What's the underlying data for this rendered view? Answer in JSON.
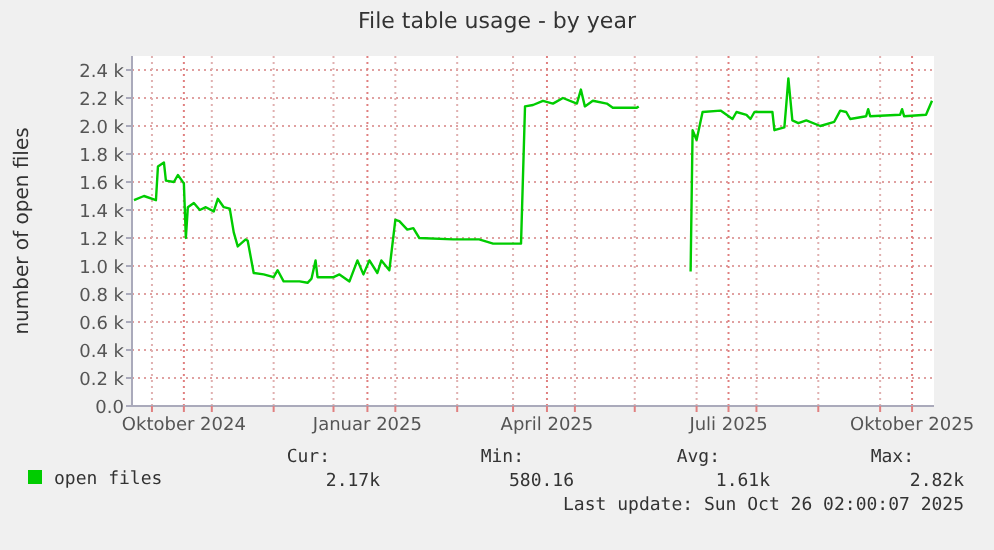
{
  "chart_data": {
    "type": "line",
    "title": "File table usage - by year",
    "ylabel": "number of open files",
    "x": [
      "2024-09-06",
      "2024-09-11",
      "2024-09-17",
      "2024-09-18",
      "2024-09-21",
      "2024-09-22",
      "2024-09-26",
      "2024-09-28",
      "2024-10-01",
      "2024-10-02",
      "2024-10-03",
      "2024-10-06",
      "2024-10-09",
      "2024-10-12",
      "2024-10-16",
      "2024-10-18",
      "2024-10-21",
      "2024-10-24",
      "2024-10-26",
      "2024-10-28",
      "2024-11-01",
      "2024-11-02",
      "2024-11-05",
      "2024-11-10",
      "2024-11-15",
      "2024-11-17",
      "2024-11-20",
      "2024-11-28",
      "2024-12-02",
      "2024-12-04",
      "2024-12-06",
      "2024-12-07",
      "2024-12-15",
      "2024-12-18",
      "2024-12-23",
      "2024-12-27",
      "2024-12-30",
      "2025-01-02",
      "2025-01-06",
      "2025-01-08",
      "2025-01-12",
      "2025-01-15",
      "2025-01-17",
      "2025-01-21",
      "2025-01-24",
      "2025-01-27",
      "2025-02-13",
      "2025-02-26",
      "2025-03-05",
      "2025-03-19",
      "2025-03-21",
      "2025-03-25",
      "2025-03-30",
      "2025-04-04",
      "2025-04-09",
      "2025-04-16",
      "2025-04-18",
      "2025-04-20",
      "2025-04-24",
      "2025-05-01",
      "2025-05-04",
      "2025-05-16",
      "2025-05-17",
      "2025-06-01",
      "2025-06-12",
      "2025-06-13",
      "2025-06-15",
      "2025-06-18",
      "2025-06-27",
      "2025-07-03",
      "2025-07-05",
      "2025-07-10",
      "2025-07-12",
      "2025-07-14",
      "2025-07-23",
      "2025-07-24",
      "2025-07-29",
      "2025-07-30",
      "2025-07-31",
      "2025-08-02",
      "2025-08-05",
      "2025-08-09",
      "2025-08-16",
      "2025-08-23",
      "2025-08-26",
      "2025-08-29",
      "2025-08-31",
      "2025-09-08",
      "2025-09-09",
      "2025-09-10",
      "2025-09-25",
      "2025-09-26",
      "2025-09-27",
      "2025-10-08",
      "2025-10-11"
    ],
    "series": [
      {
        "name": "open files",
        "color": "#00cc00",
        "values": [
          1470,
          1500,
          1470,
          1710,
          1740,
          1610,
          1600,
          1650,
          1590,
          1200,
          1420,
          1450,
          1400,
          1420,
          1390,
          1480,
          1420,
          1410,
          1240,
          1140,
          1190,
          1180,
          950,
          940,
          920,
          970,
          890,
          890,
          880,
          910,
          1040,
          920,
          920,
          940,
          890,
          1040,
          940,
          1040,
          950,
          1040,
          970,
          1330,
          1320,
          1260,
          1270,
          1200,
          1190,
          1190,
          1160,
          1160,
          2140,
          2150,
          2180,
          2160,
          2200,
          2160,
          2260,
          2140,
          2180,
          2160,
          2130,
          2130,
          2140,
          null,
          960,
          1970,
          1900,
          2100,
          2110,
          2050,
          2100,
          2080,
          2050,
          2100,
          2100,
          1970,
          1990,
          2160,
          2340,
          2040,
          2020,
          2040,
          2000,
          2030,
          2110,
          2100,
          2050,
          2070,
          2120,
          2070,
          2080,
          2120,
          2070,
          2080,
          2180
        ]
      }
    ],
    "xlim": [
      "2024-09-05",
      "2025-10-12"
    ],
    "xticks": [
      {
        "value": "2024-09-15",
        "label": null
      },
      {
        "value": "2024-10-01",
        "label": "Oktober 2024"
      },
      {
        "value": "2024-10-15",
        "label": null
      },
      {
        "value": "2024-11-15",
        "label": null
      },
      {
        "value": "2024-12-15",
        "label": null
      },
      {
        "value": "2025-01-01",
        "label": "Januar 2025"
      },
      {
        "value": "2025-01-15",
        "label": null
      },
      {
        "value": "2025-02-15",
        "label": null
      },
      {
        "value": "2025-03-15",
        "label": null
      },
      {
        "value": "2025-04-01",
        "label": "April 2025"
      },
      {
        "value": "2025-04-15",
        "label": null
      },
      {
        "value": "2025-05-15",
        "label": null
      },
      {
        "value": "2025-06-15",
        "label": null
      },
      {
        "value": "2025-07-01",
        "label": "Juli 2025"
      },
      {
        "value": "2025-07-15",
        "label": null
      },
      {
        "value": "2025-08-15",
        "label": null
      },
      {
        "value": "2025-09-15",
        "label": null
      },
      {
        "value": "2025-10-01",
        "label": "Oktober 2025"
      }
    ],
    "ylim": [
      0,
      2500
    ],
    "yticks": [
      {
        "value": 0,
        "label": "0.0"
      },
      {
        "value": 200,
        "label": "0.2 k"
      },
      {
        "value": 400,
        "label": "0.4 k"
      },
      {
        "value": 600,
        "label": "0.6 k"
      },
      {
        "value": 800,
        "label": "0.8 k"
      },
      {
        "value": 1000,
        "label": "1.0 k"
      },
      {
        "value": 1200,
        "label": "1.2 k"
      },
      {
        "value": 1400,
        "label": "1.4 k"
      },
      {
        "value": 1600,
        "label": "1.6 k"
      },
      {
        "value": 1800,
        "label": "1.8 k"
      },
      {
        "value": 2000,
        "label": "2.0 k"
      },
      {
        "value": 2200,
        "label": "2.2 k"
      },
      {
        "value": 2400,
        "label": "2.4 k"
      }
    ],
    "grid": true,
    "legend": "bottom left",
    "line_style": "solid",
    "marker": "none",
    "annotations": [
      "Cur:",
      "Min:",
      "Avg:",
      "Max:",
      "2.17k",
      "580.16",
      "1.61k",
      "2.82k",
      "Last update: Sun Oct 26 02:00:07 2025"
    ]
  }
}
